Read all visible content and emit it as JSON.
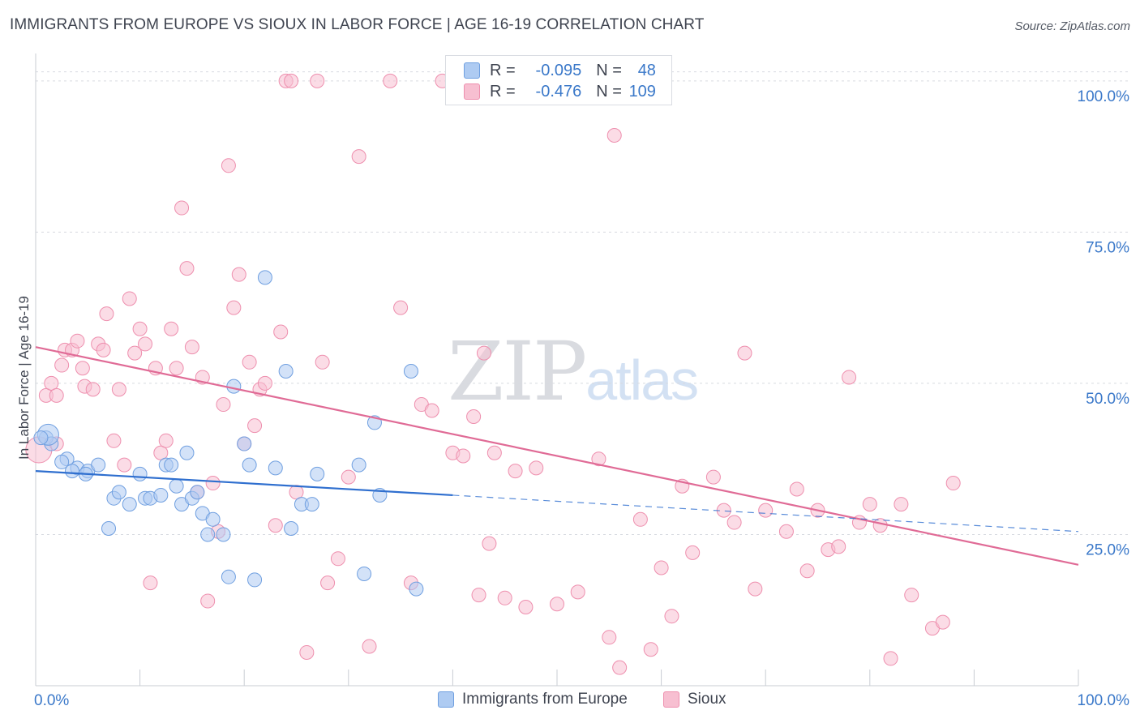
{
  "title": "IMMIGRANTS FROM EUROPE VS SIOUX IN LABOR FORCE | AGE 16-19 CORRELATION CHART",
  "source": "Source: ZipAtlas.com",
  "watermark": {
    "zip": "ZIP",
    "atlas": "atlas"
  },
  "legend": {
    "rows": [
      {
        "r_label": "R =",
        "r_value": "-0.095",
        "n_label": "N =",
        "n_value": "48",
        "color": "#aecbf2",
        "stroke": "#6f9fe0"
      },
      {
        "r_label": "R =",
        "r_value": "-0.476",
        "n_label": "N =",
        "n_value": "109",
        "color": "#f7bfd1",
        "stroke": "#ee8fae"
      }
    ]
  },
  "bottom_legend": [
    {
      "label": "Immigrants from Europe",
      "color": "#aecbf2",
      "stroke": "#6f9fe0"
    },
    {
      "label": "Sioux",
      "color": "#f7bfd1",
      "stroke": "#ee8fae"
    }
  ],
  "chart_data": {
    "type": "scatter",
    "title": "IMMIGRANTS FROM EUROPE VS SIOUX IN LABOR FORCE | AGE 16-19 CORRELATION CHART",
    "xlabel": "",
    "ylabel": "In Labor Force | Age 16-19",
    "xlim": [
      0,
      100
    ],
    "ylim": [
      0,
      104
    ],
    "x_tick_labels": [
      "0.0%",
      "100.0%"
    ],
    "y_ticks": [
      25,
      50,
      75,
      100
    ],
    "y_tick_labels": [
      "25.0%",
      "50.0%",
      "75.0%",
      "100.0%"
    ],
    "grid": true,
    "colors": {
      "blue_fill": "#aecbf2",
      "blue_stroke": "#6f9fe0",
      "blue_line": "#2f6fcf",
      "pink_fill": "#f7bfd1",
      "pink_stroke": "#ee8fae",
      "pink_line": "#e06b96",
      "tick_text": "#3a78c9"
    },
    "series": [
      {
        "name": "Immigrants from Europe",
        "trend": {
          "x0": 0,
          "y0": 35.5,
          "x1": 40,
          "y1": 31.5,
          "dash_x1": 100,
          "dash_y1": 25.5
        },
        "points": [
          [
            1,
            41
          ],
          [
            1.5,
            40
          ],
          [
            1.2,
            41.5
          ],
          [
            3,
            37.5
          ],
          [
            2.5,
            37
          ],
          [
            4,
            36
          ],
          [
            3.5,
            35.5
          ],
          [
            5,
            35.5
          ],
          [
            4.8,
            35
          ],
          [
            6,
            36.5
          ],
          [
            7.5,
            31
          ],
          [
            8,
            32
          ],
          [
            9,
            30
          ],
          [
            7,
            26
          ],
          [
            10,
            35
          ],
          [
            10.5,
            31
          ],
          [
            11,
            31
          ],
          [
            12,
            31.5
          ],
          [
            12.5,
            36.5
          ],
          [
            13,
            36.5
          ],
          [
            13.5,
            33
          ],
          [
            14,
            30
          ],
          [
            15,
            31
          ],
          [
            15.5,
            32
          ],
          [
            16,
            28.5
          ],
          [
            16.5,
            25
          ],
          [
            17,
            27.5
          ],
          [
            18,
            25
          ],
          [
            14.5,
            38.5
          ],
          [
            19,
            49.5
          ],
          [
            18.5,
            18
          ],
          [
            20,
            40
          ],
          [
            20.5,
            36.5
          ],
          [
            21,
            17.5
          ],
          [
            22,
            67.5
          ],
          [
            23,
            36
          ],
          [
            24,
            52
          ],
          [
            24.5,
            26
          ],
          [
            25.5,
            30
          ],
          [
            26.5,
            30
          ],
          [
            27,
            35
          ],
          [
            31,
            36.5
          ],
          [
            31.5,
            18.5
          ],
          [
            32.5,
            43.5
          ],
          [
            33,
            31.5
          ],
          [
            36,
            52
          ],
          [
            36.5,
            16
          ],
          [
            0.5,
            41
          ]
        ]
      },
      {
        "name": "Sioux",
        "trend": {
          "x0": 0,
          "y0": 56,
          "x1": 100,
          "y1": 20
        },
        "points": [
          [
            0.3,
            39
          ],
          [
            1,
            48
          ],
          [
            1.5,
            50
          ],
          [
            2,
            48
          ],
          [
            2.5,
            53
          ],
          [
            2.8,
            55.5
          ],
          [
            3.5,
            55.5
          ],
          [
            4,
            57
          ],
          [
            4.5,
            52.5
          ],
          [
            4.7,
            49.5
          ],
          [
            5.5,
            49
          ],
          [
            6,
            56.5
          ],
          [
            6.5,
            55.5
          ],
          [
            6.8,
            61.5
          ],
          [
            7.5,
            40.5
          ],
          [
            8,
            49
          ],
          [
            8.5,
            36.5
          ],
          [
            9,
            64
          ],
          [
            9.5,
            55
          ],
          [
            10,
            59
          ],
          [
            10.5,
            56.5
          ],
          [
            11,
            17
          ],
          [
            11.5,
            52.5
          ],
          [
            12,
            38.5
          ],
          [
            12.5,
            40.5
          ],
          [
            13,
            59
          ],
          [
            13.5,
            52.5
          ],
          [
            14,
            79
          ],
          [
            14.5,
            69
          ],
          [
            15,
            56
          ],
          [
            15.5,
            32
          ],
          [
            16,
            51
          ],
          [
            16.5,
            14
          ],
          [
            17,
            33.5
          ],
          [
            17.5,
            25.5
          ],
          [
            18,
            46.5
          ],
          [
            18.5,
            86
          ],
          [
            19,
            62.5
          ],
          [
            19.5,
            68
          ],
          [
            20,
            40
          ],
          [
            20.5,
            53.5
          ],
          [
            21,
            43
          ],
          [
            21.5,
            49
          ],
          [
            22,
            50
          ],
          [
            23,
            26.5
          ],
          [
            23.5,
            58.5
          ],
          [
            24,
            100
          ],
          [
            24.5,
            100
          ],
          [
            25,
            32
          ],
          [
            26,
            5.5
          ],
          [
            27,
            100
          ],
          [
            27.5,
            53.5
          ],
          [
            28,
            17
          ],
          [
            29,
            21
          ],
          [
            30,
            34.5
          ],
          [
            31,
            87.5
          ],
          [
            32,
            6.5
          ],
          [
            34,
            100
          ],
          [
            35,
            62.5
          ],
          [
            36,
            17
          ],
          [
            37,
            46.5
          ],
          [
            38,
            45.5
          ],
          [
            39,
            100
          ],
          [
            40,
            38.5
          ],
          [
            41,
            38
          ],
          [
            42,
            44.5
          ],
          [
            42.5,
            15
          ],
          [
            43,
            55
          ],
          [
            43.5,
            23.5
          ],
          [
            45,
            14.5
          ],
          [
            46,
            35.5
          ],
          [
            47,
            13
          ],
          [
            48,
            36
          ],
          [
            50,
            13.5
          ],
          [
            52,
            15.5
          ],
          [
            54,
            37.5
          ],
          [
            55,
            8
          ],
          [
            55.5,
            91
          ],
          [
            56,
            3
          ],
          [
            58,
            27.5
          ],
          [
            59,
            6
          ],
          [
            60,
            19.5
          ],
          [
            61,
            11.5
          ],
          [
            62,
            33
          ],
          [
            63,
            22
          ],
          [
            65,
            34.5
          ],
          [
            66,
            29
          ],
          [
            67,
            27
          ],
          [
            68,
            55
          ],
          [
            69,
            16
          ],
          [
            70,
            29
          ],
          [
            72,
            25.5
          ],
          [
            73,
            32.5
          ],
          [
            74,
            19
          ],
          [
            75,
            29
          ],
          [
            76,
            22.5
          ],
          [
            77,
            23
          ],
          [
            78,
            51
          ],
          [
            79,
            27
          ],
          [
            80,
            30
          ],
          [
            81,
            26.5
          ],
          [
            82,
            4.5
          ],
          [
            83,
            30
          ],
          [
            84,
            15
          ],
          [
            86,
            9.5
          ],
          [
            87,
            10.5
          ],
          [
            88,
            33.5
          ],
          [
            44,
            38.5
          ],
          [
            2,
            40
          ]
        ]
      }
    ]
  }
}
